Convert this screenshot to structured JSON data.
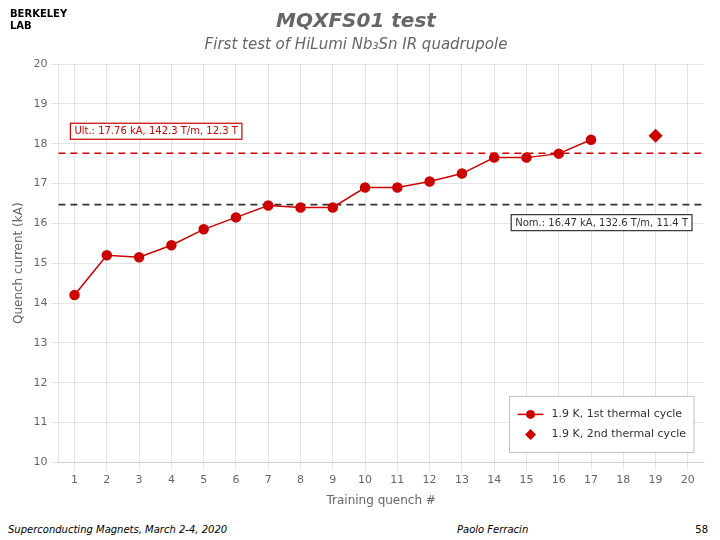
{
  "chart_data": {
    "type": "line",
    "title": "MQXFS01 test",
    "subtitle": "First test of HiLumi Nb₃Sn IR quadrupole",
    "header_texts": [
      "BERKELEY",
      "LAB"
    ],
    "xlabel": "Training quench #",
    "ylabel": "Quench current (kA)",
    "xlim": [
      0.5,
      20.5
    ],
    "xticks": [
      1,
      2,
      3,
      4,
      5,
      6,
      7,
      8,
      9,
      10,
      11,
      12,
      13,
      14,
      15,
      16,
      17,
      18,
      19,
      20
    ],
    "ylim": [
      10,
      20
    ],
    "yticks": [
      10,
      11,
      12,
      13,
      14,
      15,
      16,
      17,
      18,
      19,
      20
    ],
    "grid": true,
    "legend": "lower right",
    "series": [
      {
        "name": "1.9 K, 1st thermal cycle",
        "type": "line",
        "color": "#cc0000",
        "marker": "circle",
        "line_style": "solid",
        "x": [
          1,
          2,
          3,
          4,
          5,
          6,
          7,
          8,
          9,
          10,
          11,
          12,
          13,
          14,
          15,
          16,
          17
        ],
        "values": [
          14.2,
          15.2,
          15.15,
          15.45,
          15.85,
          16.15,
          16.45,
          16.4,
          16.4,
          16.9,
          16.9,
          17.05,
          17.25,
          17.65,
          17.65,
          17.75,
          18.1
        ]
      },
      {
        "name": "1.9 K, 2nd thermal cycle",
        "type": "scatter",
        "color": "#cc0000",
        "marker": "diamond",
        "x": [
          19
        ],
        "values": [
          18.2
        ]
      }
    ],
    "reference_lines": [
      {
        "value": 16.47,
        "label": "Nom.: 16.47 kA, 132.6 T/m, 11.4 T",
        "color": "#333333",
        "line_style": "dashed"
      },
      {
        "value": 17.76,
        "label": "Ult.: 17.76 kA, 142.3 T/m, 12.3 T",
        "color": "#cc0000",
        "line_style": "dashed"
      }
    ],
    "footer": [
      "Superconducting Magnets, March 2-4, 2020",
      "Paolo Ferracin",
      "58"
    ]
  }
}
